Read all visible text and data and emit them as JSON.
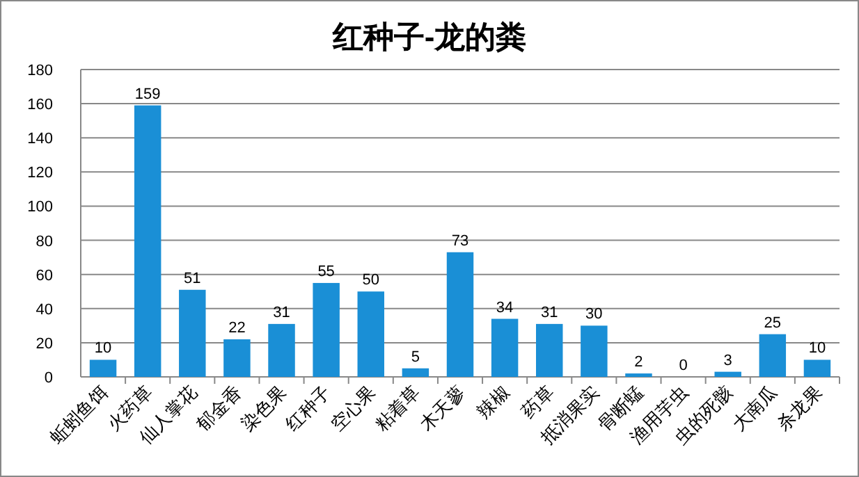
{
  "chart_data": {
    "type": "bar",
    "title": "红种子-龙的粪",
    "categories": [
      "蚯蚓鱼饵",
      "火药草",
      "仙人掌花",
      "郁金香",
      "染色果",
      "红种子",
      "空心果",
      "粘着草",
      "木天蓼",
      "辣椒",
      "药草",
      "抵消果实",
      "骨断蜢",
      "渔用芋虫",
      "虫的死骸",
      "大南瓜",
      "杀龙果"
    ],
    "values": [
      10,
      159,
      51,
      22,
      31,
      55,
      50,
      5,
      73,
      34,
      31,
      30,
      2,
      0,
      3,
      25,
      10
    ],
    "color": "#1a8fd6",
    "ylim": [
      0,
      180
    ],
    "yticks": [
      0,
      20,
      40,
      60,
      80,
      100,
      120,
      140,
      160,
      180
    ],
    "grid": "y",
    "data_labels": true
  }
}
